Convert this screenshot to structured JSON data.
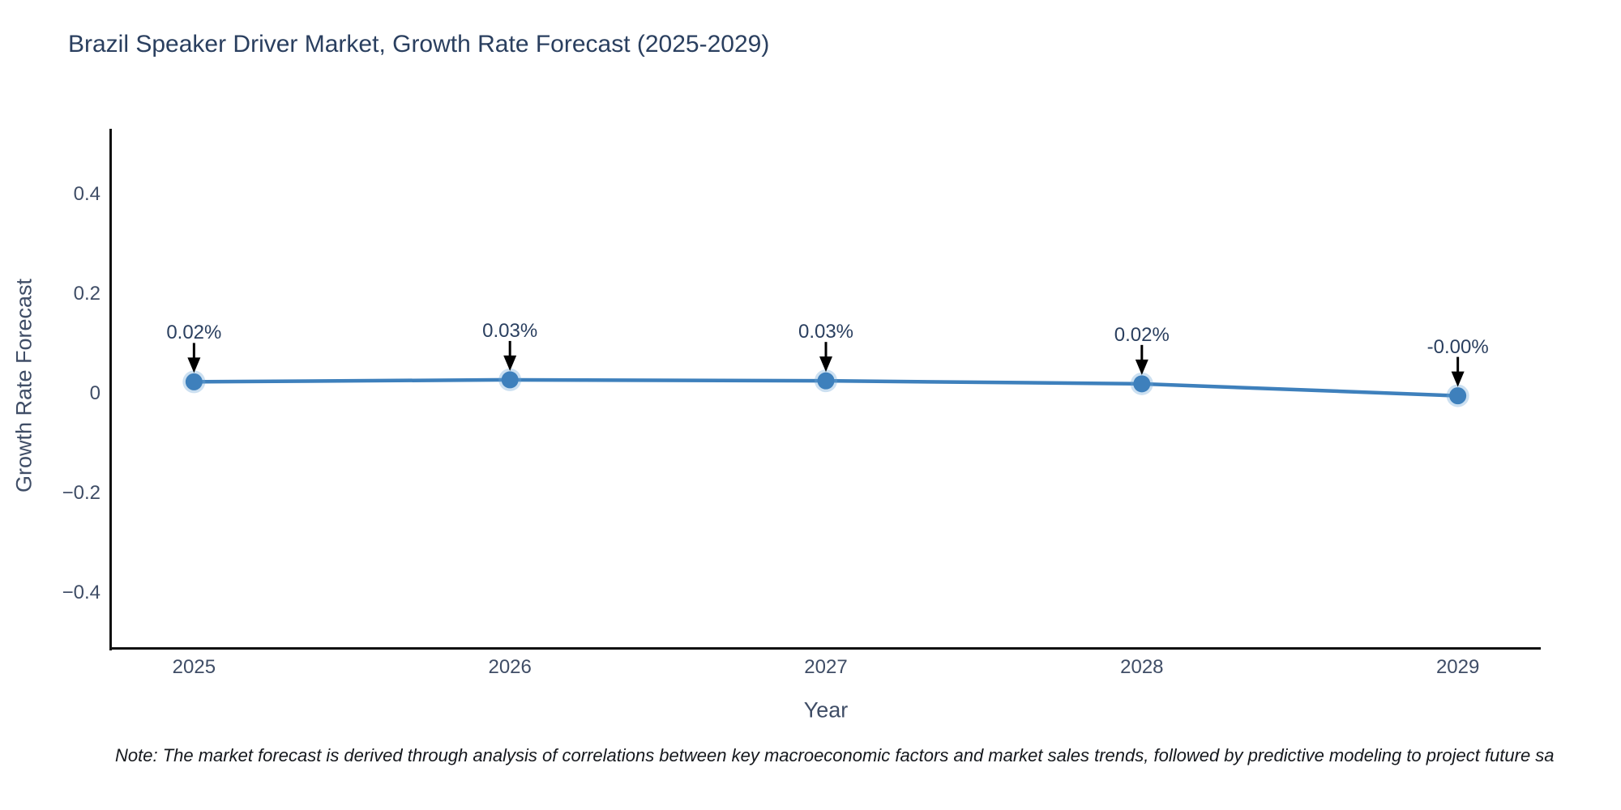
{
  "title": "Brazil Speaker Driver Market, Growth Rate Forecast (2025-2029)",
  "note": "Note: The market forecast is derived through analysis of correlations between key macroeconomic factors and market sales trends, followed by predictive modeling to project future sa",
  "chart_data": {
    "type": "line",
    "title": "Brazil Speaker Driver Market, Growth Rate Forecast (2025-2029)",
    "xlabel": "Year",
    "ylabel": "Growth Rate Forecast",
    "x": [
      2025,
      2026,
      2027,
      2028,
      2029
    ],
    "values": [
      0.024,
      0.028,
      0.026,
      0.02,
      -0.004
    ],
    "point_labels": [
      "0.02%",
      "0.03%",
      "0.03%",
      "0.02%",
      "-0.00%"
    ],
    "x_tick_labels": [
      "2025",
      "2026",
      "2027",
      "2028",
      "2029"
    ],
    "y_ticks": [
      0.4,
      0.2,
      0,
      -0.2,
      -0.4
    ],
    "y_tick_labels": [
      "0.4",
      "0.2",
      "0",
      "−0.2",
      "−0.4"
    ],
    "xlim": [
      2024.74,
      2029.26
    ],
    "ylim": [
      -0.51,
      0.53
    ],
    "grid": false,
    "legend": "none",
    "line_color": "#3e80bc",
    "marker_color": "#3e80bc",
    "marker_halo_color": "rgba(110,165,215,0.35)",
    "arrow_color": "#000000",
    "annotation_color": "#2a3f5f"
  },
  "colors": {
    "title": "#2a3f5f",
    "tick": "#3f4d66",
    "axis_line": "#111111",
    "note": "#15181d"
  }
}
